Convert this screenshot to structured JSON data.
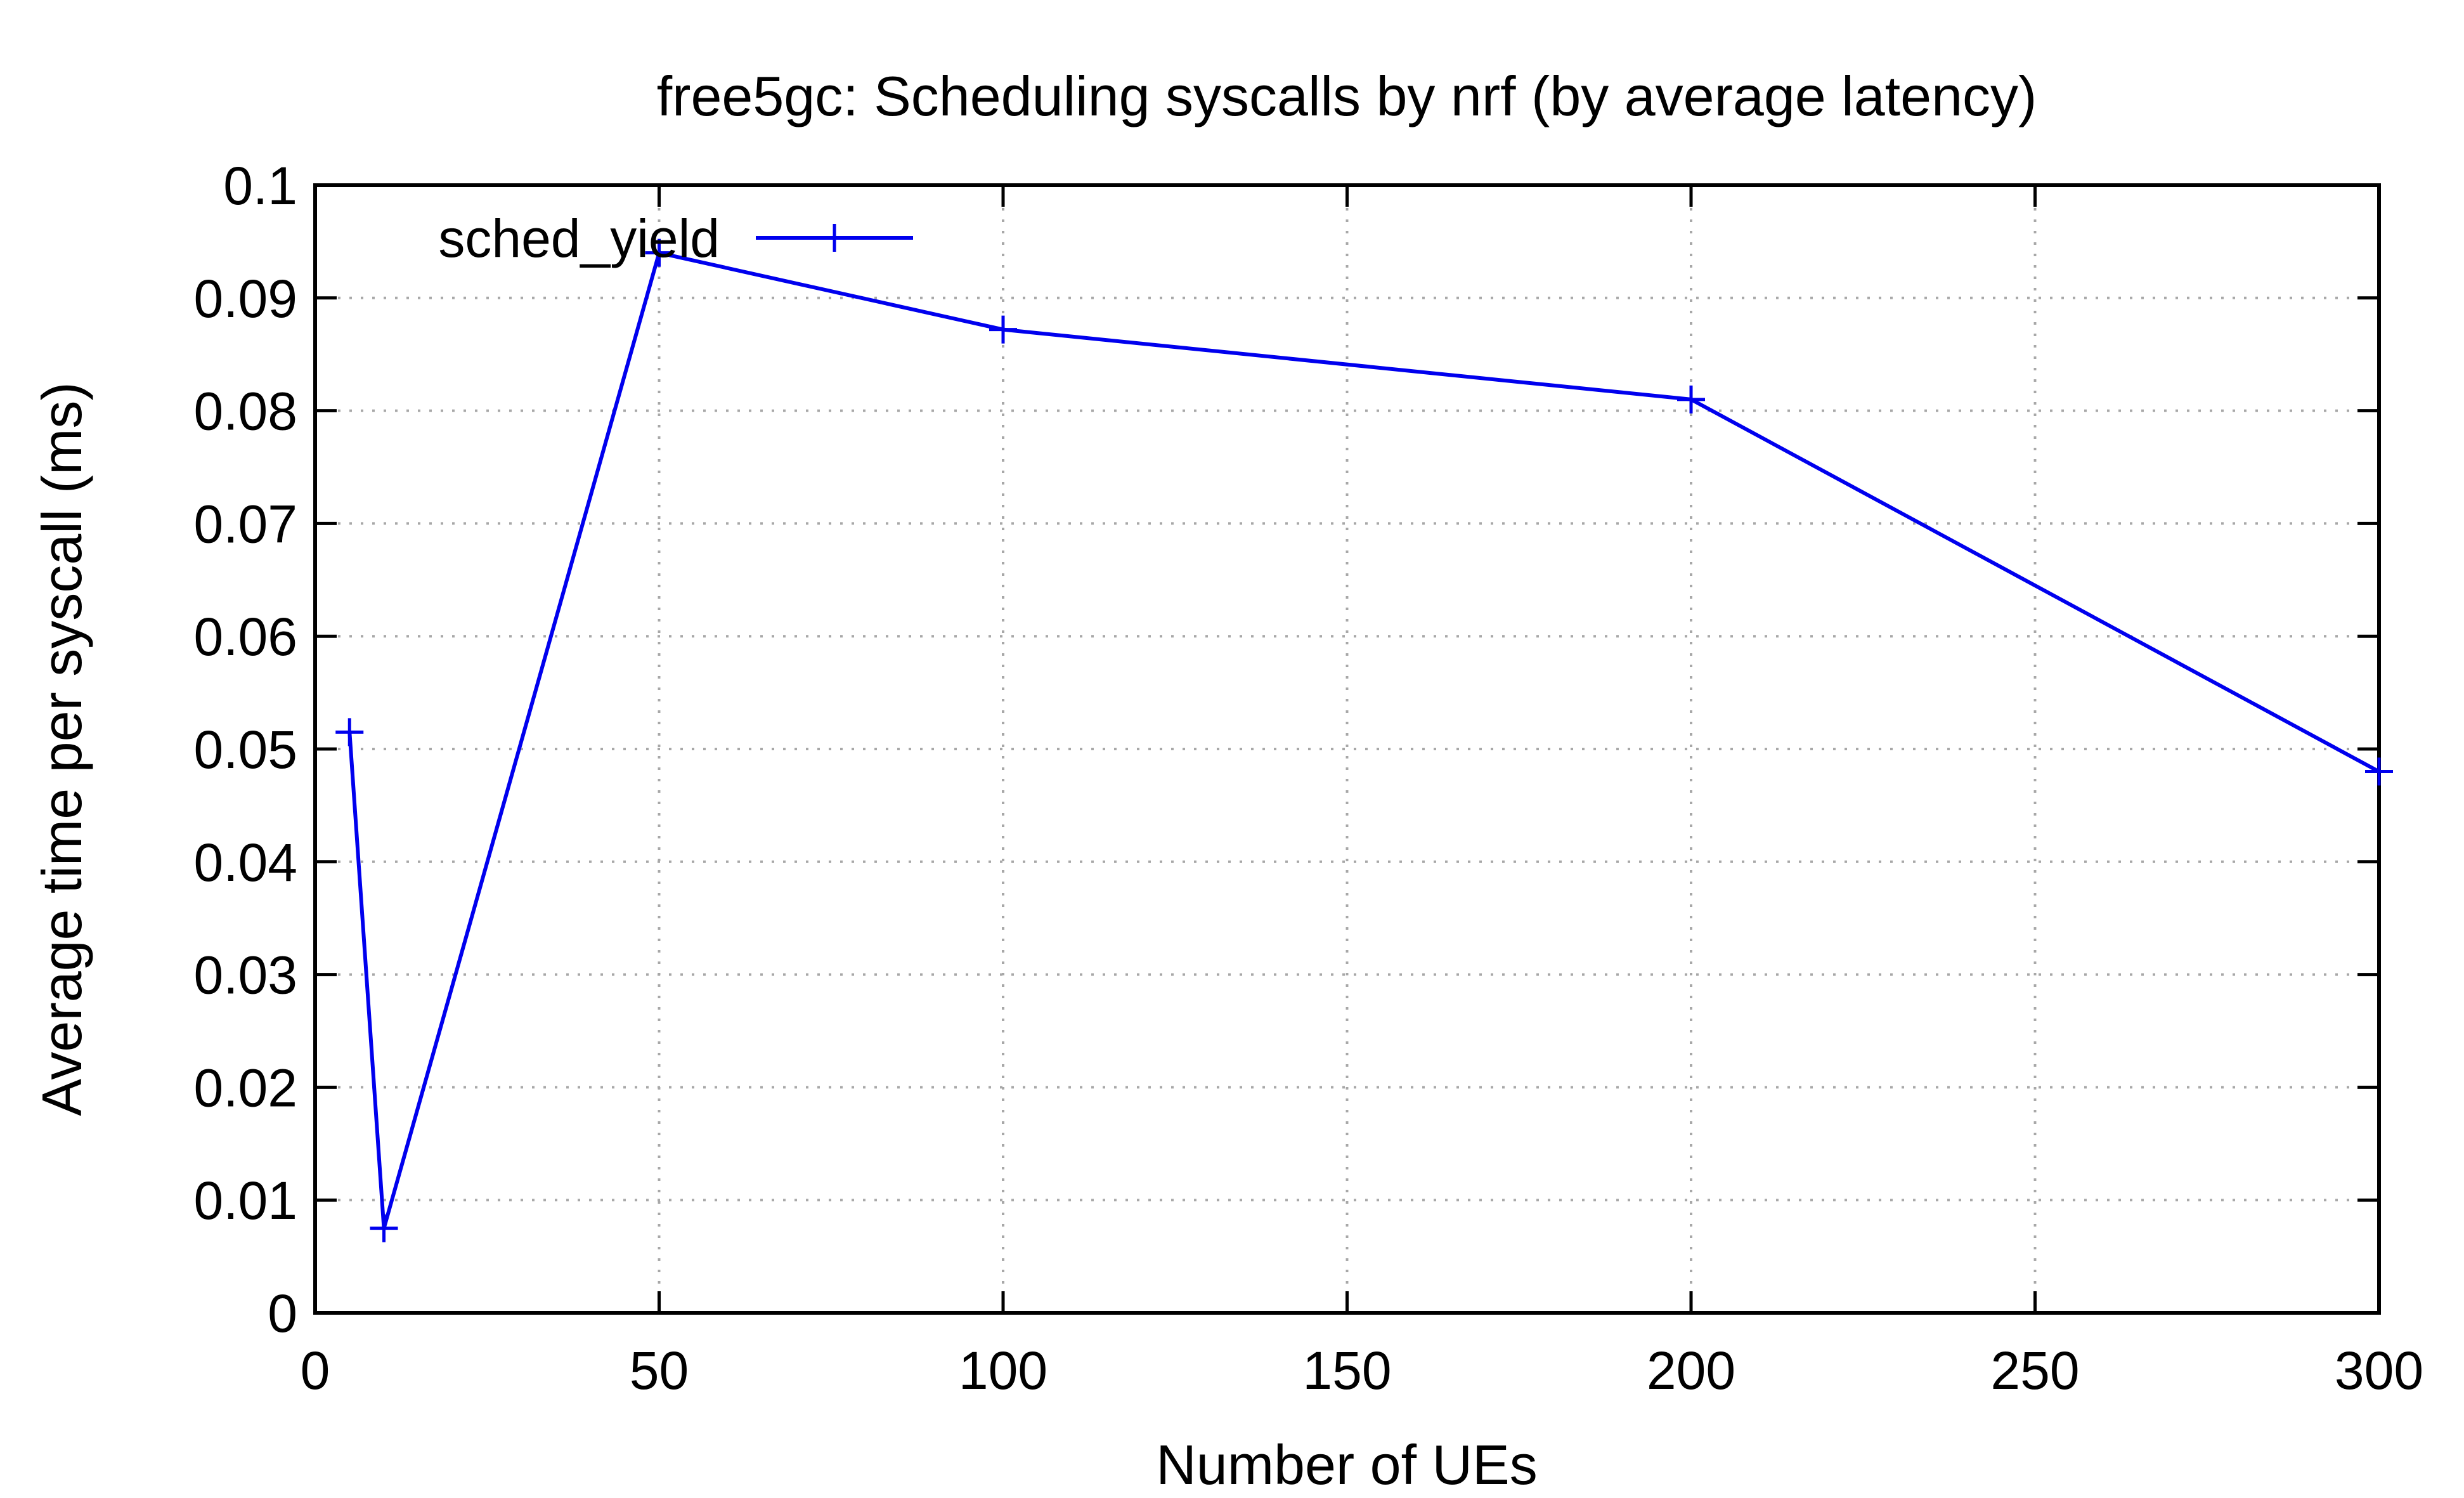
{
  "chart_data": {
    "type": "line",
    "title": "free5gc: Scheduling syscalls by nrf (by average latency)",
    "xlabel": "Number of UEs",
    "ylabel": "Average time per syscall (ms)",
    "xlim": [
      0,
      300
    ],
    "ylim": [
      0,
      0.1
    ],
    "x_ticks": [
      0,
      50,
      100,
      150,
      200,
      250,
      300
    ],
    "x_tick_labels": [
      "0",
      "50",
      "100",
      "150",
      "200",
      "250",
      "300"
    ],
    "y_ticks": [
      0,
      0.01,
      0.02,
      0.03,
      0.04,
      0.05,
      0.06,
      0.07,
      0.08,
      0.09,
      0.1
    ],
    "y_tick_labels": [
      "0",
      "0.01",
      "0.02",
      "0.03",
      "0.04",
      "0.05",
      "0.06",
      "0.07",
      "0.08",
      "0.09",
      "0.1"
    ],
    "grid": true,
    "legend": "top-left",
    "series": [
      {
        "name": "sched_yield",
        "color": "#0000ee",
        "marker": "plus",
        "points": [
          {
            "x": 5,
            "y": 0.0515
          },
          {
            "x": 10,
            "y": 0.0075
          },
          {
            "x": 50,
            "y": 0.094
          },
          {
            "x": 100,
            "y": 0.0872
          },
          {
            "x": 200,
            "y": 0.081
          },
          {
            "x": 300,
            "y": 0.048
          }
        ]
      }
    ]
  }
}
